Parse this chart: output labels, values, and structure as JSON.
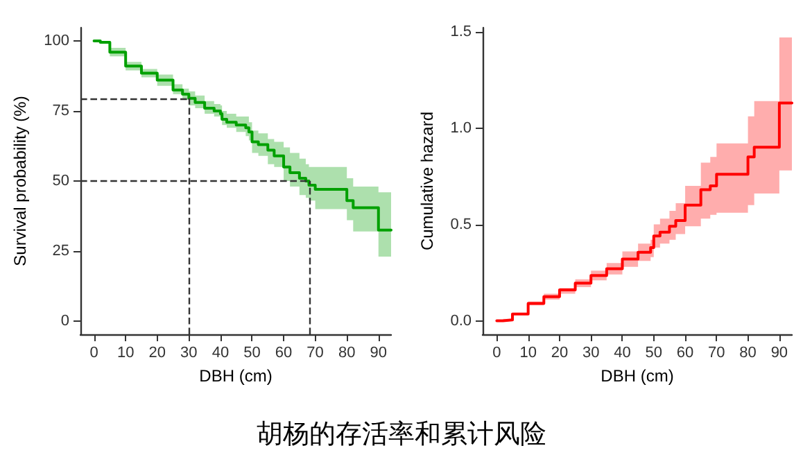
{
  "chart_data": [
    {
      "type": "step",
      "xlabel": "DBH (cm)",
      "ylabel": "Survival probability (%)",
      "xlim": [
        -4.3,
        94
      ],
      "xticks": [
        0,
        10,
        20,
        30,
        40,
        50,
        60,
        70,
        80,
        90
      ],
      "ylim": [
        -4.7,
        104.7
      ],
      "yticks": [
        0,
        25,
        50,
        75,
        100
      ],
      "line_style": "solid",
      "series": [
        {
          "color": "#00a000",
          "x": [
            0,
            2,
            5,
            10,
            15,
            20,
            25,
            28,
            30,
            32,
            35,
            38,
            40,
            40.5,
            42,
            45,
            48,
            49,
            50,
            52,
            55,
            57,
            60,
            62,
            65,
            67,
            68,
            70,
            80,
            82,
            90,
            94
          ],
          "values": [
            100,
            99.5,
            96,
            91,
            88.5,
            86,
            82.5,
            81,
            79.5,
            78,
            76,
            75,
            74,
            72,
            71,
            70,
            69,
            67.5,
            64,
            63,
            61,
            59,
            55,
            53,
            51,
            50,
            48.5,
            47,
            43,
            40.5,
            32.5,
            32.5
          ],
          "lower": [
            100,
            99,
            94.5,
            89.5,
            87,
            84,
            81,
            79,
            77,
            76,
            74,
            73,
            72,
            70,
            69,
            67.5,
            66,
            64.5,
            60,
            59,
            56,
            55,
            50,
            48,
            45,
            44,
            43,
            40,
            36,
            32,
            23,
            23
          ],
          "upper": [
            100,
            100,
            97.5,
            92.5,
            90,
            88,
            84.5,
            83,
            82,
            80.5,
            78.5,
            77.5,
            77,
            75,
            74,
            73,
            73,
            71,
            68,
            67,
            65,
            64,
            62,
            60,
            58,
            56,
            55,
            55,
            51,
            48,
            46,
            46
          ]
        }
      ],
      "ref_lines": [
        {
          "axis": "y",
          "value": 79.5,
          "color": "#333333",
          "line_style": "dashed"
        },
        {
          "axis": "x",
          "value": 30,
          "color": "#333333",
          "line_style": "dashed"
        },
        {
          "axis": "y",
          "value": 50,
          "color": "#333333",
          "line_style": "dashed"
        },
        {
          "axis": "x",
          "value": 68,
          "color": "#333333",
          "line_style": "dashed"
        }
      ],
      "annotations": [
        "胡杨的存活率和累计风险"
      ]
    },
    {
      "type": "step",
      "xlabel": "DBH (cm)",
      "ylabel": "Cumulative hazard",
      "xlim": [
        -4.5,
        94
      ],
      "xticks": [
        0,
        10,
        20,
        30,
        40,
        50,
        60,
        70,
        80,
        90
      ],
      "ylim": [
        -0.07,
        1.52
      ],
      "yticks": [
        {
          "value": 0,
          "label": "0.0"
        },
        {
          "value": 0.5,
          "label": "0.5"
        },
        {
          "value": 1,
          "label": "1.0"
        },
        {
          "value": 1.5,
          "label": "1.5"
        }
      ],
      "line_style": "solid",
      "series": [
        {
          "color": "#ff0000",
          "x": [
            0,
            2,
            5,
            10,
            15,
            20,
            25,
            30,
            35,
            40,
            45,
            49,
            50,
            52,
            55,
            57,
            60,
            65,
            68,
            70,
            80,
            82,
            90,
            94
          ],
          "values": [
            0,
            0.005,
            0.035,
            0.09,
            0.125,
            0.16,
            0.195,
            0.235,
            0.27,
            0.32,
            0.355,
            0.38,
            0.44,
            0.46,
            0.49,
            0.52,
            0.6,
            0.68,
            0.7,
            0.76,
            0.85,
            0.9,
            1.13,
            1.13
          ],
          "lower": [
            0,
            0,
            0.03,
            0.08,
            0.11,
            0.14,
            0.175,
            0.21,
            0.24,
            0.28,
            0.31,
            0.33,
            0.38,
            0.4,
            0.42,
            0.45,
            0.49,
            0.53,
            0.55,
            0.56,
            0.6,
            0.66,
            0.78,
            0.78
          ],
          "upper": [
            0,
            0.01,
            0.04,
            0.1,
            0.14,
            0.17,
            0.215,
            0.26,
            0.3,
            0.36,
            0.4,
            0.42,
            0.5,
            0.53,
            0.57,
            0.61,
            0.7,
            0.82,
            0.85,
            0.92,
            1.06,
            1.14,
            1.47,
            1.47
          ]
        }
      ]
    }
  ]
}
